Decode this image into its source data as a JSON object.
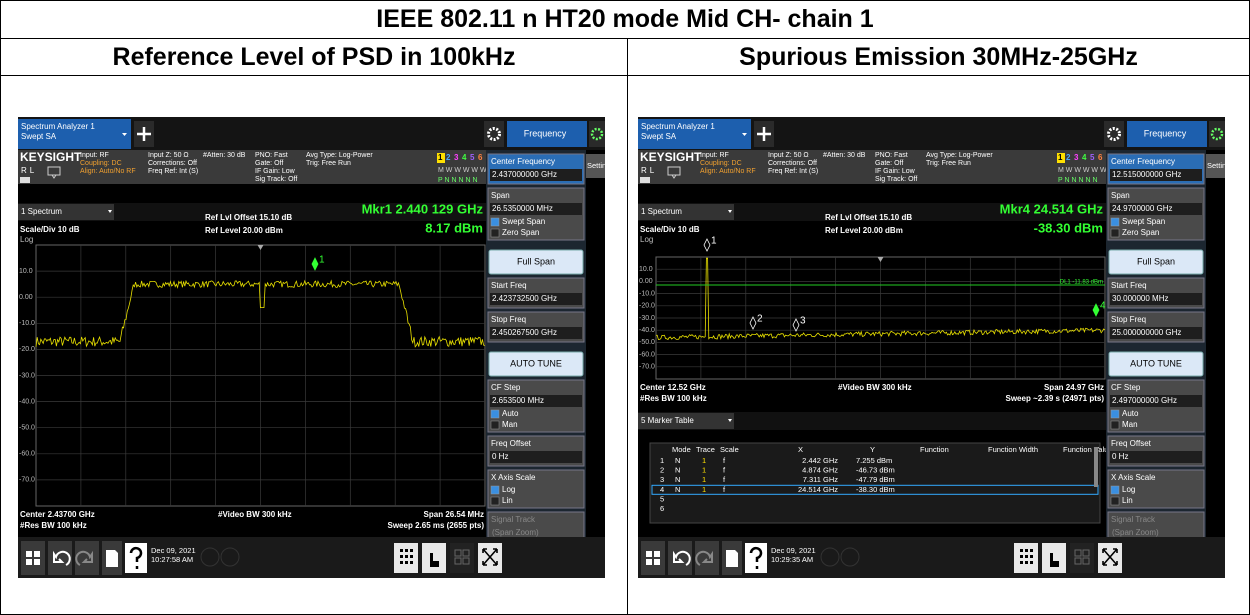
{
  "document": {
    "title": "IEEE 802.11 n HT20 mode Mid CH- chain 1",
    "columns": [
      "Reference Level of PSD in 100kHz",
      "Spurious Emission 30MHz-25GHz"
    ]
  },
  "screens": [
    {
      "app_tab": [
        "Spectrum Analyzer 1",
        "Swept SA"
      ],
      "menu_tab": "Frequency",
      "brand": "KEYSIGHT",
      "rl": "RL",
      "status": [
        [
          "Input: RF",
          "Coupling: DC",
          "Align: Auto/No RF"
        ],
        [
          "Input Z: 50 Ω",
          "Corrections: Off",
          "Freq Ref: Int (S)"
        ],
        [
          "#Atten: 30 dB"
        ],
        [
          "PNO: Fast",
          "Gate: Off",
          "IF Gain: Low",
          "Sig Track: Off"
        ],
        [
          "Avg Type: Log-Power",
          "Trig: Free Run"
        ]
      ],
      "traces": [
        "1",
        "2",
        "3",
        "4",
        "5",
        "6"
      ],
      "trace_types": "M W W W W W",
      "detectors": "P N N N N N",
      "window": "1 Spectrum",
      "scale": "Scale/Div 10 dB",
      "log": "Log",
      "ref_offset": "Ref Lvl Offset 15.10 dB",
      "ref_level": "Ref Level 20.00 dBm",
      "marker": "Mkr1  2.440 129 GHz",
      "marker_value": "8.17 dBm",
      "y_labels": [
        "10.0",
        "0.00",
        "-10.0",
        "-20.0",
        "-30.0",
        "-40.0",
        "-50.0",
        "-60.0",
        "-70.0"
      ],
      "marker_flags": [
        "1"
      ],
      "footer": {
        "center": "Center 2.43700 GHz",
        "vbw": "#Video BW 300 kHz",
        "span": "Span 26.54 MHz",
        "rbw": "#Res BW 100 kHz",
        "sweep": "Sweep 2.65 ms (2655 pts)"
      },
      "settings": "Settings",
      "softkeys": [
        {
          "label": "Center Frequency",
          "value": "2.437000000 GHz"
        },
        {
          "label": "Span",
          "value": "26.5350000 MHz",
          "options": [
            "Swept Span",
            "Zero Span"
          ]
        },
        {
          "button": "Full Span"
        },
        {
          "label": "Start Freq",
          "value": "2.423732500 GHz"
        },
        {
          "label": "Stop Freq",
          "value": "2.450267500 GHz"
        },
        {
          "button": "AUTO TUNE"
        },
        {
          "label": "CF Step",
          "value": "2.653500 MHz",
          "options": [
            "Auto",
            "Man"
          ]
        },
        {
          "label": "Freq Offset",
          "value": "0 Hz"
        },
        {
          "label": "X Axis Scale",
          "options": [
            "Log",
            "Lin"
          ]
        },
        {
          "label": "Signal Track",
          "value": "(Span Zoom)"
        }
      ],
      "date": "Dec 09, 2021",
      "time": "10:27:58 AM"
    },
    {
      "app_tab": [
        "Spectrum Analyzer 1",
        "Swept SA"
      ],
      "menu_tab": "Frequency",
      "brand": "KEYSIGHT",
      "rl": "RL",
      "status": [
        [
          "Input: RF",
          "Coupling: DC",
          "Align: Auto/No RF"
        ],
        [
          "Input Z: 50 Ω",
          "Corrections: Off",
          "Freq Ref: Int (S)"
        ],
        [
          "#Atten: 30 dB"
        ],
        [
          "PNO: Fast",
          "Gate: Off",
          "IF Gain: Low",
          "Sig Track: Off"
        ],
        [
          "Avg Type: Log-Power",
          "Trig: Free Run"
        ]
      ],
      "traces": [
        "1",
        "2",
        "3",
        "4",
        "5",
        "6"
      ],
      "trace_types": "M W W W W W",
      "detectors": "P N N N N N",
      "window": "1 Spectrum",
      "scale": "Scale/Div 10 dB",
      "log": "Log",
      "ref_offset": "Ref Lvl Offset 15.10 dB",
      "ref_level": "Ref Level 20.00 dBm",
      "marker": "Mkr4  24.514 GHz",
      "marker_value": "-38.30 dBm",
      "y_labels": [
        "10.0",
        "0.00",
        "-10.0",
        "-20.0",
        "-30.0",
        "-40.0",
        "-50.0",
        "-60.0",
        "-70.0"
      ],
      "marker_flags": [
        "1",
        "2",
        "3",
        "4"
      ],
      "display_line": "DL1 -11.83 dBm",
      "footer": {
        "center": "Center 12.52 GHz",
        "vbw": "#Video BW 300 kHz",
        "span": "Span 24.97 GHz",
        "rbw": "#Res BW 100 kHz",
        "sweep": "Sweep ~2.39 s (24971 pts)"
      },
      "marker_table": {
        "title": "5 Marker Table",
        "header": [
          "Mode",
          "Trace",
          "Scale",
          "X",
          "Y",
          "Function",
          "Function Width",
          "Function Value"
        ],
        "rows": [
          [
            "1",
            "N",
            "1",
            "f",
            "2.442 GHz",
            "7.255 dBm"
          ],
          [
            "2",
            "N",
            "1",
            "f",
            "4.874 GHz",
            "-46.73 dBm"
          ],
          [
            "3",
            "N",
            "1",
            "f",
            "7.311 GHz",
            "-47.79 dBm"
          ],
          [
            "4",
            "N",
            "1",
            "f",
            "24.514 GHz",
            "-38.30 dBm"
          ],
          [
            "5"
          ],
          [
            "6"
          ]
        ]
      },
      "settings": "Settings",
      "softkeys": [
        {
          "label": "Center Frequency",
          "value": "12.515000000 GHz"
        },
        {
          "label": "Span",
          "value": "24.9700000 GHz",
          "options": [
            "Swept Span",
            "Zero Span"
          ]
        },
        {
          "button": "Full Span"
        },
        {
          "label": "Start Freq",
          "value": "30.000000 MHz"
        },
        {
          "label": "Stop Freq",
          "value": "25.000000000 GHz"
        },
        {
          "button": "AUTO TUNE"
        },
        {
          "label": "CF Step",
          "value": "2.497000000 GHz",
          "options": [
            "Auto",
            "Man"
          ]
        },
        {
          "label": "Freq Offset",
          "value": "0 Hz"
        },
        {
          "label": "X Axis Scale",
          "options": [
            "Log",
            "Lin"
          ]
        },
        {
          "label": "Signal Track",
          "value": "(Span Zoom)"
        }
      ],
      "date": "Dec 09, 2021",
      "time": "10:29:35 AM"
    }
  ]
}
